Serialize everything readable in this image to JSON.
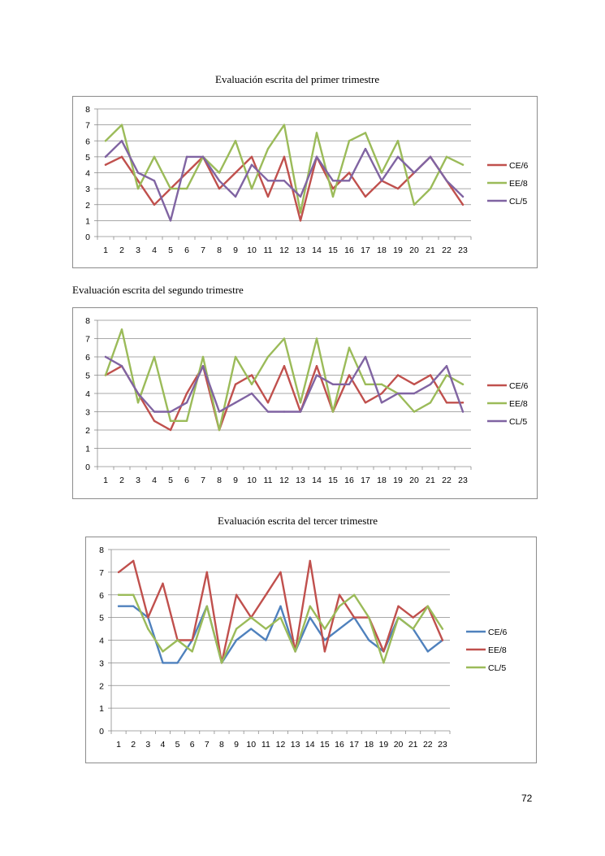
{
  "page": {
    "number": "72"
  },
  "colors": {
    "CE6_red": "#c0504d",
    "EE8_green": "#9bbb59",
    "CL5_purple": "#8064a2",
    "blue": "#4f81bd"
  },
  "chart_data": [
    {
      "type": "line",
      "title": "Evaluación escrita del primer trimestre",
      "categories": [
        "1",
        "2",
        "3",
        "4",
        "5",
        "6",
        "7",
        "8",
        "9",
        "10",
        "11",
        "12",
        "13",
        "14",
        "15",
        "16",
        "17",
        "18",
        "19",
        "20",
        "21",
        "22",
        "23"
      ],
      "yticks": [
        "0",
        "1",
        "2",
        "3",
        "4",
        "5",
        "6",
        "7",
        "8"
      ],
      "ylim": [
        0,
        8
      ],
      "grid": true,
      "legend": "right",
      "series": [
        {
          "name": "CE/6",
          "color": "#c0504d",
          "values": [
            4.5,
            5,
            3.5,
            2,
            3,
            4,
            5,
            3,
            4,
            5,
            2.5,
            5,
            1,
            5,
            3,
            4,
            2.5,
            3.5,
            3,
            4,
            5,
            3.5,
            2
          ]
        },
        {
          "name": "EE/8",
          "color": "#9bbb59",
          "values": [
            6,
            7,
            3,
            5,
            3,
            3,
            5,
            4,
            6,
            3,
            5.5,
            7,
            1.5,
            6.5,
            2.5,
            6,
            6.5,
            4,
            6,
            2,
            3,
            5,
            4.5
          ]
        },
        {
          "name": "CL/5",
          "color": "#8064a2",
          "values": [
            5,
            6,
            4,
            3.5,
            1,
            5,
            5,
            3.5,
            2.5,
            4.5,
            3.5,
            3.5,
            2.5,
            5,
            3.5,
            3.5,
            5.5,
            3.5,
            5,
            4,
            5,
            3.5,
            2.5
          ]
        }
      ]
    },
    {
      "type": "line",
      "title": "Evaluación escrita del  segundo trimestre",
      "categories": [
        "1",
        "2",
        "3",
        "4",
        "5",
        "6",
        "7",
        "8",
        "9",
        "10",
        "11",
        "12",
        "13",
        "14",
        "15",
        "16",
        "17",
        "18",
        "19",
        "20",
        "21",
        "22",
        "23"
      ],
      "yticks": [
        "0",
        "1",
        "2",
        "3",
        "4",
        "5",
        "6",
        "7",
        "8"
      ],
      "ylim": [
        0,
        8
      ],
      "grid": true,
      "legend": "right",
      "series": [
        {
          "name": "CE/6",
          "color": "#c0504d",
          "values": [
            5,
            5.5,
            4,
            2.5,
            2,
            4,
            5.5,
            2,
            4.5,
            5,
            3.5,
            5.5,
            3,
            5.5,
            3,
            5,
            3.5,
            4,
            5,
            4.5,
            5,
            3.5,
            3.5
          ]
        },
        {
          "name": "EE/8",
          "color": "#9bbb59",
          "values": [
            5,
            7.5,
            3.5,
            6,
            2.5,
            2.5,
            6,
            2,
            6,
            4.5,
            6,
            7,
            3.5,
            7,
            3,
            6.5,
            4.5,
            4.5,
            4,
            3,
            3.5,
            5,
            4.5
          ]
        },
        {
          "name": "CL/5",
          "color": "#8064a2",
          "values": [
            6,
            5.5,
            4,
            3,
            3,
            3.5,
            5.5,
            3,
            3.5,
            4,
            3,
            3,
            3,
            5,
            4.5,
            4.5,
            6,
            3.5,
            4,
            4,
            4.5,
            5.5,
            3
          ]
        }
      ]
    },
    {
      "type": "line",
      "title": "Evaluación escrita del tercer trimestre",
      "categories": [
        "1",
        "2",
        "3",
        "4",
        "5",
        "6",
        "7",
        "8",
        "9",
        "10",
        "11",
        "12",
        "13",
        "14",
        "15",
        "16",
        "17",
        "18",
        "19",
        "20",
        "21",
        "22",
        "23"
      ],
      "yticks": [
        "0",
        "1",
        "2",
        "3",
        "4",
        "5",
        "6",
        "7",
        "8"
      ],
      "ylim": [
        0,
        8
      ],
      "grid": true,
      "legend": "right",
      "series": [
        {
          "name": "CE/6",
          "color": "#4f81bd",
          "values": [
            5.5,
            5.5,
            5,
            3,
            3,
            4,
            5.5,
            3,
            4,
            4.5,
            4,
            5.5,
            3.5,
            5,
            4,
            4.5,
            5,
            4,
            3.5,
            5,
            4.5,
            3.5,
            4
          ]
        },
        {
          "name": "EE/8",
          "color": "#c0504d",
          "values": [
            7,
            7.5,
            5,
            6.5,
            4,
            4,
            7,
            3,
            6,
            5,
            6,
            7,
            3.5,
            7.5,
            3.5,
            6,
            5,
            5,
            3.5,
            5.5,
            5,
            5.5,
            4
          ]
        },
        {
          "name": "CL/5",
          "color": "#9bbb59",
          "values": [
            6,
            6,
            4.5,
            3.5,
            4,
            3.5,
            5.5,
            3,
            4.5,
            5,
            4.5,
            5,
            3.5,
            5.5,
            4.5,
            5.5,
            6,
            5,
            3,
            5,
            4.5,
            5.5,
            4.5
          ]
        }
      ]
    }
  ]
}
